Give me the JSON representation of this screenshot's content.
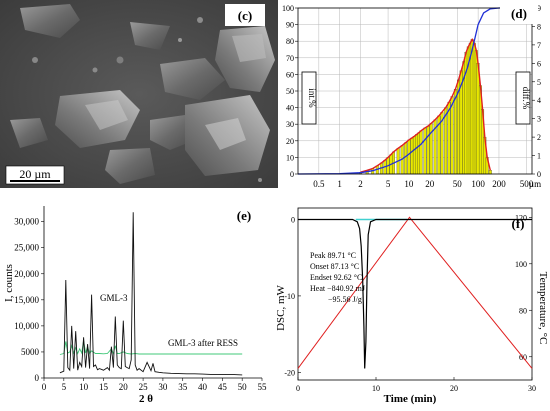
{
  "panels": {
    "c": {
      "label": "(c)",
      "scalebar": "20 µm"
    },
    "d": {
      "label": "(d)"
    },
    "e": {
      "label": "(e)"
    },
    "f": {
      "label": "(f)"
    }
  },
  "chart_data": [
    {
      "panel": "d",
      "type": "bar",
      "xscale": "log",
      "xlabel": "µm",
      "ylabel_left": "int.%",
      "ylabel_right": "diff.%",
      "xlim": [
        0.25,
        600
      ],
      "ylim_left": [
        0,
        100
      ],
      "ylim_right": [
        0,
        9
      ],
      "grid": true,
      "x_ticks": [
        "0.5",
        "1",
        "2",
        "5",
        "10",
        "20",
        "50",
        "100",
        "200",
        "500"
      ],
      "x_tick_values": [
        0.5,
        1,
        2,
        5,
        10,
        20,
        50,
        100,
        200,
        500
      ],
      "y_ticks_left": [
        "0",
        "10",
        "20",
        "30",
        "40",
        "50",
        "60",
        "70",
        "80",
        "90",
        "100"
      ],
      "y_ticks_right": [
        "0",
        "1",
        "2",
        "3",
        "4",
        "5",
        "6",
        "7",
        "8",
        "9"
      ],
      "series": [
        {
          "role": "differential",
          "color": "#e8e800",
          "x": [
            2,
            2.5,
            3,
            3.5,
            4,
            4.5,
            5,
            5.5,
            6,
            7,
            8,
            9,
            10,
            11,
            12,
            13,
            14,
            15,
            17,
            19,
            21,
            24,
            27,
            30,
            34,
            38,
            42,
            47,
            52,
            57,
            62,
            67,
            72,
            77,
            82,
            88,
            94,
            100,
            108,
            116,
            125,
            135,
            150
          ],
          "values": [
            0.1,
            0.2,
            0.3,
            0.45,
            0.6,
            0.75,
            0.9,
            1.05,
            1.2,
            1.4,
            1.55,
            1.7,
            1.85,
            1.95,
            2.05,
            2.15,
            2.25,
            2.35,
            2.5,
            2.6,
            2.75,
            2.95,
            3.15,
            3.35,
            3.6,
            3.9,
            4.2,
            4.6,
            5.1,
            5.6,
            6.1,
            6.6,
            6.9,
            7.1,
            7.3,
            7.1,
            6.7,
            6.0,
            4.8,
            3.5,
            2.0,
            0.9,
            0.2
          ]
        },
        {
          "role": "cumulative",
          "color": "#1f2fd6",
          "x": [
            0.25,
            1,
            2,
            3,
            5,
            8,
            10,
            15,
            20,
            30,
            40,
            50,
            60,
            70,
            80,
            90,
            100,
            120,
            150,
            200,
            600
          ],
          "values": [
            0,
            0.2,
            0.8,
            2,
            5,
            9,
            12,
            18,
            24,
            32,
            40,
            48,
            56,
            64,
            73,
            82,
            90,
            97,
            99.5,
            100,
            100
          ]
        }
      ]
    },
    {
      "panel": "e",
      "type": "line",
      "xlabel": "2 θ",
      "ylabel": "I, counts",
      "xlim": [
        0,
        55
      ],
      "ylim": [
        0,
        33000
      ],
      "x_ticks": [
        "0",
        "5",
        "10",
        "15",
        "20",
        "25",
        "30",
        "35",
        "40",
        "45",
        "50",
        "55"
      ],
      "y_ticks": [
        "0",
        "5000",
        "10,000",
        "15,000",
        "20,000",
        "25,000",
        "30,000"
      ],
      "series": [
        {
          "name": "GML-3",
          "color": "#111111",
          "x": [
            4,
            5,
            5.5,
            6,
            6.5,
            7,
            7.5,
            8,
            8.5,
            9,
            9.5,
            10,
            10.5,
            11,
            11.5,
            12,
            12.5,
            13,
            13.5,
            14,
            15,
            16,
            16.5,
            17,
            17.5,
            18,
            18.5,
            19,
            19.5,
            20,
            20.5,
            21,
            21.5,
            22,
            22.5,
            23,
            23.5,
            24,
            25,
            26,
            27,
            27.5,
            28,
            29,
            30,
            32,
            34,
            36,
            38,
            40,
            42,
            44,
            46,
            48,
            50
          ],
          "values": [
            1000,
            1300,
            18800,
            2000,
            1500,
            10000,
            1800,
            9000,
            1500,
            3000,
            2200,
            7800,
            2000,
            6500,
            1800,
            16000,
            2200,
            2500,
            1600,
            1800,
            1500,
            2000,
            1500,
            6000,
            2000,
            11800,
            2500,
            2000,
            1800,
            11000,
            2200,
            2000,
            1800,
            3500,
            31800,
            2500,
            1500,
            1800,
            1200,
            3000,
            1400,
            2800,
            1200,
            1100,
            1000,
            900,
            850,
            800,
            800,
            750,
            700,
            700,
            650,
            650,
            600
          ]
        },
        {
          "name": "GML-3 after RESS",
          "color": "#40c878",
          "x": [
            4,
            5,
            5.5,
            6,
            6.5,
            7,
            7.5,
            8,
            8.5,
            9,
            9.5,
            10,
            10.5,
            11,
            11.5,
            12,
            13,
            14,
            15,
            16,
            17,
            17.5,
            18,
            18.5,
            19,
            20,
            21,
            22,
            23,
            24,
            25,
            27,
            30,
            35,
            40,
            45,
            50
          ],
          "values": [
            4500,
            4700,
            7000,
            4800,
            5000,
            6200,
            4800,
            5800,
            4700,
            5600,
            4800,
            7200,
            4800,
            6000,
            4700,
            5200,
            4700,
            4700,
            4650,
            4700,
            5600,
            4700,
            6200,
            4700,
            4700,
            5000,
            4700,
            4600,
            4700,
            4600,
            4600,
            4600,
            4600,
            4600,
            4600,
            4600,
            4600
          ]
        }
      ],
      "annotations": [
        "GML-3",
        "GML-3 after RESS"
      ]
    },
    {
      "panel": "f",
      "type": "line",
      "xlabel": "Time (min)",
      "ylabel_left": "DSC, mW",
      "ylabel_right": "Temperature, °C",
      "xlim": [
        0,
        30
      ],
      "ylim_left": [
        -21,
        1.5
      ],
      "ylim_right": [
        50,
        124
      ],
      "x_ticks": [
        "0",
        "10",
        "20",
        "30"
      ],
      "y_ticks_left": [
        "0",
        "-10",
        "-20"
      ],
      "y_ticks_right": [
        "60",
        "80",
        "100",
        "120"
      ],
      "annotations": [
        "Peak 89.71 °C",
        "Onset 87.13 °C",
        "Endset 92.62 °C",
        "Heat −840.92 mJ",
        "−95.56 J/g"
      ],
      "series": [
        {
          "role": "dsc",
          "color": "#000000",
          "x": [
            0,
            7,
            7.6,
            7.9,
            8.1,
            8.3,
            8.45,
            8.55,
            8.7,
            8.85,
            9.0,
            9.3,
            10,
            20,
            30
          ],
          "values": [
            0,
            0,
            -0.3,
            -1.2,
            -3.5,
            -8,
            -14,
            -19.5,
            -16,
            -8,
            -2,
            -0.3,
            0,
            0,
            0
          ]
        },
        {
          "role": "baseline",
          "color": "#40d0d0",
          "x": [
            7.4,
            14
          ],
          "values": [
            0,
            0
          ]
        },
        {
          "role": "temperature",
          "color": "#e02020",
          "x": [
            0,
            14.3,
            30
          ],
          "values": [
            55,
            120,
            55
          ]
        }
      ]
    }
  ]
}
